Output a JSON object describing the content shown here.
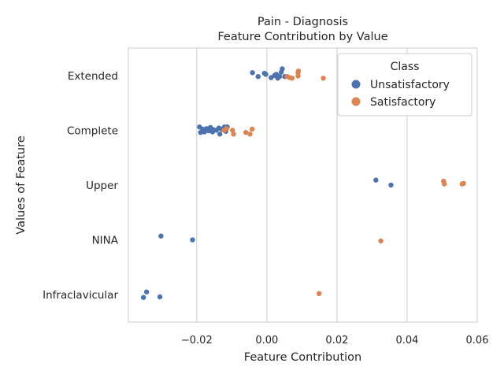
{
  "chart_data": {
    "type": "scatter",
    "title": "Pain - Diagnosis",
    "subtitle": "Feature Contribution by Value",
    "xlabel": "Feature Contribution",
    "ylabel": "Values of Feature",
    "xlim": [
      -0.0395,
      0.06
    ],
    "xticks": [
      -0.02,
      0.0,
      0.02,
      0.04,
      0.06
    ],
    "xtick_labels": [
      "−0.02",
      "0.00",
      "0.02",
      "0.04",
      "0.06"
    ],
    "categories": [
      "Extended",
      "Complete",
      "Upper",
      "NINA",
      "Infraclavicular"
    ],
    "grid": "vertical",
    "legend": {
      "title": "Class",
      "position": "top-right"
    },
    "series": [
      {
        "name": "Unsatisfactory",
        "color": "#4c72b0",
        "points": [
          {
            "cat": "Extended",
            "x": -0.0041,
            "j": -0.05
          },
          {
            "cat": "Extended",
            "x": -0.0025,
            "j": 0.02
          },
          {
            "cat": "Extended",
            "x": -0.0007,
            "j": -0.04
          },
          {
            "cat": "Extended",
            "x": -0.0003,
            "j": -0.02
          },
          {
            "cat": "Extended",
            "x": 0.0012,
            "j": 0.04
          },
          {
            "cat": "Extended",
            "x": 0.0022,
            "j": 0.0
          },
          {
            "cat": "Extended",
            "x": 0.0027,
            "j": -0.02
          },
          {
            "cat": "Extended",
            "x": 0.0031,
            "j": 0.05
          },
          {
            "cat": "Extended",
            "x": 0.0036,
            "j": 0.02
          },
          {
            "cat": "Extended",
            "x": 0.0041,
            "j": -0.06
          },
          {
            "cat": "Extended",
            "x": 0.0044,
            "j": -0.12
          },
          {
            "cat": "Extended",
            "x": 0.0051,
            "j": 0.02
          },
          {
            "cat": "Complete",
            "x": -0.0192,
            "j": -0.06
          },
          {
            "cat": "Complete",
            "x": -0.0189,
            "j": 0.04
          },
          {
            "cat": "Complete",
            "x": -0.0183,
            "j": -0.02
          },
          {
            "cat": "Complete",
            "x": -0.0178,
            "j": 0.03
          },
          {
            "cat": "Complete",
            "x": -0.0172,
            "j": -0.03
          },
          {
            "cat": "Complete",
            "x": -0.0166,
            "j": 0.01
          },
          {
            "cat": "Complete",
            "x": -0.0161,
            "j": -0.05
          },
          {
            "cat": "Complete",
            "x": -0.0155,
            "j": 0.03
          },
          {
            "cat": "Complete",
            "x": -0.0152,
            "j": -0.01
          },
          {
            "cat": "Complete",
            "x": -0.0144,
            "j": 0.0
          },
          {
            "cat": "Complete",
            "x": -0.0137,
            "j": -0.04
          },
          {
            "cat": "Complete",
            "x": -0.0134,
            "j": 0.07
          },
          {
            "cat": "Complete",
            "x": -0.0129,
            "j": -0.02
          },
          {
            "cat": "Complete",
            "x": -0.0121,
            "j": -0.06
          },
          {
            "cat": "Complete",
            "x": -0.0117,
            "j": 0.02
          },
          {
            "cat": "Complete",
            "x": -0.0113,
            "j": -0.06
          },
          {
            "cat": "Upper",
            "x": 0.0311,
            "j": -0.09
          },
          {
            "cat": "Upper",
            "x": 0.0354,
            "j": 0.0
          },
          {
            "cat": "NINA",
            "x": -0.0302,
            "j": -0.07
          },
          {
            "cat": "NINA",
            "x": -0.0212,
            "j": 0.0
          },
          {
            "cat": "Infraclavicular",
            "x": -0.0343,
            "j": -0.05
          },
          {
            "cat": "Infraclavicular",
            "x": -0.0352,
            "j": 0.05
          },
          {
            "cat": "Infraclavicular",
            "x": -0.0305,
            "j": 0.04
          }
        ]
      },
      {
        "name": "Satisfactory",
        "color": "#dd8452",
        "points": [
          {
            "cat": "Extended",
            "x": 0.0058,
            "j": 0.02
          },
          {
            "cat": "Extended",
            "x": 0.0065,
            "j": 0.04
          },
          {
            "cat": "Extended",
            "x": 0.0072,
            "j": 0.05
          },
          {
            "cat": "Extended",
            "x": 0.0089,
            "j": -0.05
          },
          {
            "cat": "Extended",
            "x": 0.009,
            "j": -0.08
          },
          {
            "cat": "Extended",
            "x": 0.0089,
            "j": 0.01
          },
          {
            "cat": "Extended",
            "x": 0.0161,
            "j": 0.05
          },
          {
            "cat": "Complete",
            "x": -0.0122,
            "j": 0.0
          },
          {
            "cat": "Complete",
            "x": -0.0115,
            "j": -0.03
          },
          {
            "cat": "Complete",
            "x": -0.0098,
            "j": 0.0
          },
          {
            "cat": "Complete",
            "x": -0.0095,
            "j": 0.07
          },
          {
            "cat": "Complete",
            "x": -0.006,
            "j": 0.04
          },
          {
            "cat": "Complete",
            "x": -0.0048,
            "j": 0.07
          },
          {
            "cat": "Complete",
            "x": -0.0042,
            "j": -0.02
          },
          {
            "cat": "Upper",
            "x": 0.0504,
            "j": -0.07
          },
          {
            "cat": "Upper",
            "x": 0.0506,
            "j": -0.02
          },
          {
            "cat": "Upper",
            "x": 0.0557,
            "j": -0.02
          },
          {
            "cat": "Upper",
            "x": 0.0561,
            "j": -0.03
          },
          {
            "cat": "NINA",
            "x": 0.0325,
            "j": 0.02
          },
          {
            "cat": "Infraclavicular",
            "x": 0.0149,
            "j": -0.02
          }
        ]
      }
    ]
  }
}
